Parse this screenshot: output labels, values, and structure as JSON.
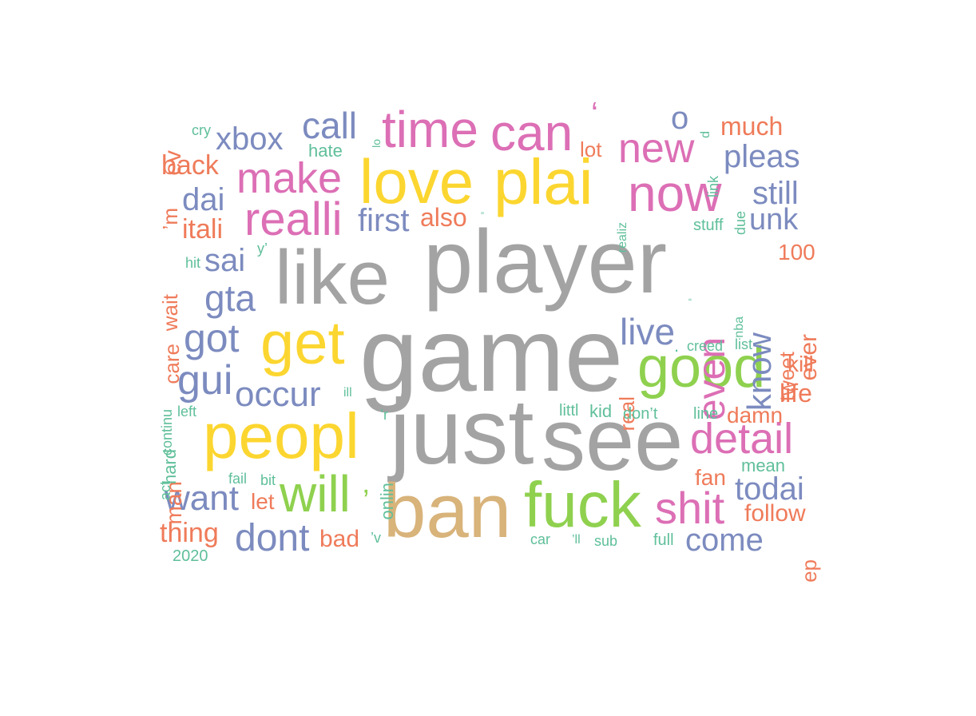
{
  "palette": {
    "gray": "#a3a3a3",
    "tan": "#d8b37a",
    "green": "#8fd14f",
    "yellow": "#fcd630",
    "pink": "#dc6fb5",
    "blue": "#7c8bbf",
    "orange": "#ef7b5a",
    "teal": "#5fbf9a"
  },
  "words": [
    {
      "text": "game",
      "color": "gray"
    },
    {
      "text": "player",
      "color": "gray"
    },
    {
      "text": "like",
      "color": "gray"
    },
    {
      "text": "just",
      "color": "gray"
    },
    {
      "text": "see",
      "color": "gray"
    },
    {
      "text": "ban",
      "color": "tan"
    },
    {
      "text": "fuck",
      "color": "green"
    },
    {
      "text": "good",
      "color": "green"
    },
    {
      "text": "will",
      "color": "green"
    },
    {
      "text": "get",
      "color": "yellow"
    },
    {
      "text": "love",
      "color": "yellow"
    },
    {
      "text": "plai",
      "color": "yellow"
    },
    {
      "text": "peopl",
      "color": "yellow"
    },
    {
      "text": "time",
      "color": "pink"
    },
    {
      "text": "can",
      "color": "pink"
    },
    {
      "text": "now",
      "color": "pink"
    },
    {
      "text": "new",
      "color": "pink"
    },
    {
      "text": "make",
      "color": "pink"
    },
    {
      "text": "realli",
      "color": "pink"
    },
    {
      "text": "even",
      "color": "pink"
    },
    {
      "text": "detail",
      "color": "pink"
    },
    {
      "text": "shit",
      "color": "pink"
    },
    {
      "text": "xbox",
      "color": "blue"
    },
    {
      "text": "call",
      "color": "blue"
    },
    {
      "text": "dai",
      "color": "blue"
    },
    {
      "text": "sai",
      "color": "blue"
    },
    {
      "text": "gta",
      "color": "blue"
    },
    {
      "text": "got",
      "color": "blue"
    },
    {
      "text": "gui",
      "color": "blue"
    },
    {
      "text": "occur",
      "color": "blue"
    },
    {
      "text": "want",
      "color": "blue"
    },
    {
      "text": "dont",
      "color": "blue"
    },
    {
      "text": "first",
      "color": "blue"
    },
    {
      "text": "live",
      "color": "blue"
    },
    {
      "text": "know",
      "color": "blue"
    },
    {
      "text": "pleas",
      "color": "blue"
    },
    {
      "text": "still",
      "color": "blue"
    },
    {
      "text": "unk",
      "color": "blue"
    },
    {
      "text": "todai",
      "color": "blue"
    },
    {
      "text": "come",
      "color": "blue"
    },
    {
      "text": "back",
      "color": "orange"
    },
    {
      "text": "itali",
      "color": "orange"
    },
    {
      "text": "wait",
      "color": "orange"
    },
    {
      "text": "care",
      "color": "orange"
    },
    {
      "text": "man",
      "color": "orange"
    },
    {
      "text": "thing",
      "color": "orange"
    },
    {
      "text": "much",
      "color": "orange"
    },
    {
      "text": "lot",
      "color": "orange"
    },
    {
      "text": "also",
      "color": "orange"
    },
    {
      "text": "100",
      "color": "orange"
    },
    {
      "text": "ever",
      "color": "orange"
    },
    {
      "text": "tweet",
      "color": "orange"
    },
    {
      "text": "real",
      "color": "orange"
    },
    {
      "text": "kill",
      "color": "orange"
    },
    {
      "text": "life",
      "color": "orange"
    },
    {
      "text": "damn",
      "color": "orange"
    },
    {
      "text": "fan",
      "color": "orange"
    },
    {
      "text": "follow",
      "color": "orange"
    },
    {
      "text": "let",
      "color": "orange"
    },
    {
      "text": "bad",
      "color": "orange"
    },
    {
      "text": "’m",
      "color": "orange"
    },
    {
      "text": "ev",
      "color": "orange"
    },
    {
      "text": "ep",
      "color": "orange"
    },
    {
      "text": "cry",
      "color": "teal"
    },
    {
      "text": "hate",
      "color": "teal"
    },
    {
      "text": "hit",
      "color": "teal"
    },
    {
      "text": "y’",
      "color": "teal"
    },
    {
      "text": "continu",
      "color": "teal"
    },
    {
      "text": "hard",
      "color": "teal"
    },
    {
      "text": "left",
      "color": "teal"
    },
    {
      "text": "act",
      "color": "teal"
    },
    {
      "text": "fail",
      "color": "teal"
    },
    {
      "text": "bit",
      "color": "teal"
    },
    {
      "text": "2020",
      "color": "teal"
    },
    {
      "text": "ill",
      "color": "teal"
    },
    {
      "text": "’r",
      "color": "teal"
    },
    {
      "text": "onlin",
      "color": "teal"
    },
    {
      "text": "’v",
      "color": "teal"
    },
    {
      "text": "”",
      "color": "teal"
    },
    {
      "text": "littl",
      "color": "teal"
    },
    {
      "text": "kid",
      "color": "teal"
    },
    {
      "text": "don’t",
      "color": "teal"
    },
    {
      "text": "car",
      "color": "teal"
    },
    {
      "text": "’ll",
      "color": "teal"
    },
    {
      "text": "sub",
      "color": "teal"
    },
    {
      "text": "full",
      "color": "teal"
    },
    {
      "text": "line",
      "color": "teal"
    },
    {
      "text": "mean",
      "color": "teal"
    },
    {
      "text": "stuff",
      "color": "teal"
    },
    {
      "text": "creed",
      "color": "teal"
    },
    {
      "text": "list",
      "color": "teal"
    },
    {
      "text": "nba",
      "color": "teal"
    },
    {
      "text": "“",
      "color": "teal"
    },
    {
      "text": "realiz",
      "color": "teal"
    },
    {
      "text": "due",
      "color": "teal"
    },
    {
      "text": "link",
      "color": "teal"
    },
    {
      "text": "d",
      "color": "teal"
    },
    {
      "text": "lo",
      "color": "teal"
    },
    {
      "text": ".",
      "color": "teal"
    },
    {
      "text": "’",
      "color": "green"
    },
    {
      "text": "ʻ",
      "color": "pink"
    },
    {
      "text": "o",
      "color": "blue"
    }
  ]
}
